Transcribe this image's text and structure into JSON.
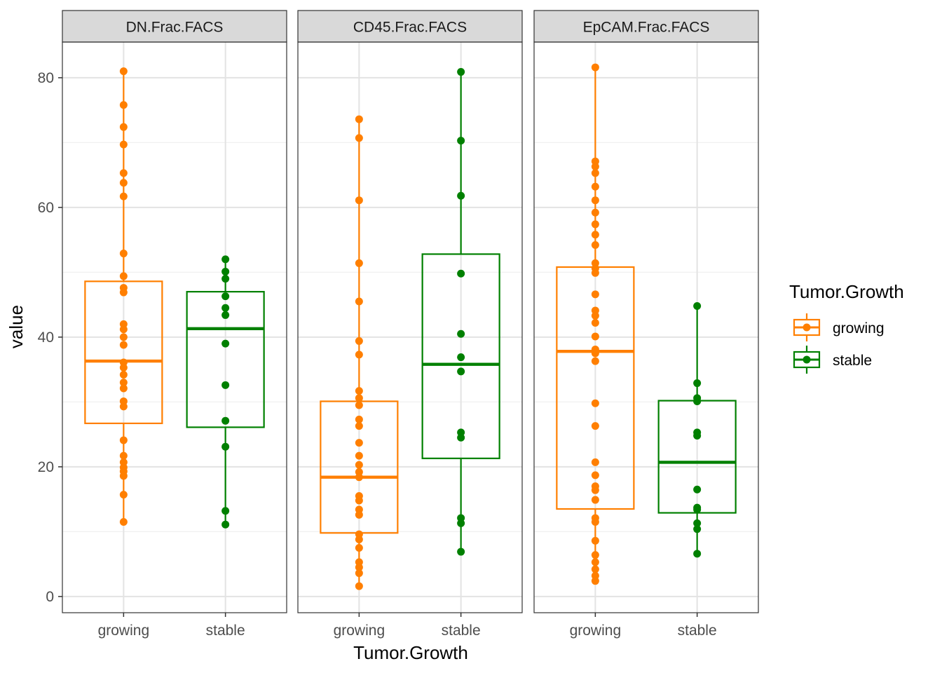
{
  "chart_data": {
    "type": "box",
    "xlabel": "Tumor.Growth",
    "ylabel": "value",
    "ylim": [
      -2.5,
      85.5
    ],
    "y_ticks": [
      0,
      20,
      40,
      60,
      80
    ],
    "categories": [
      "growing",
      "stable"
    ],
    "legend": {
      "title": "Tumor.Growth",
      "position": "right",
      "entries": [
        "growing",
        "stable"
      ]
    },
    "colors": {
      "growing": "#ff7f00",
      "stable": "#008000"
    },
    "grid": true,
    "facets": [
      {
        "name": "DN.Frac.FACS",
        "groups": [
          {
            "category": "growing",
            "box": {
              "min": 11.5,
              "q1": 26.7,
              "median": 36.3,
              "q3": 48.6,
              "max": 81.0
            },
            "points": [
              81.0,
              75.8,
              72.4,
              69.7,
              65.3,
              63.8,
              61.7,
              52.9,
              49.4,
              47.6,
              46.9,
              42.0,
              41.2,
              40.0,
              38.8,
              36.1,
              35.3,
              34.2,
              33.0,
              32.1,
              30.1,
              29.3,
              24.1,
              21.7,
              20.7,
              19.9,
              19.3,
              18.6,
              15.7,
              11.5
            ]
          },
          {
            "category": "stable",
            "box": {
              "min": 11.1,
              "q1": 26.1,
              "median": 41.3,
              "q3": 47.0,
              "max": 52.0
            },
            "points": [
              52.0,
              50.1,
              49.0,
              46.3,
              44.5,
              43.4,
              39.0,
              32.6,
              27.1,
              23.1,
              13.2,
              11.1
            ]
          }
        ]
      },
      {
        "name": "CD45.Frac.FACS",
        "groups": [
          {
            "category": "growing",
            "box": {
              "min": 1.6,
              "q1": 9.8,
              "median": 18.4,
              "q3": 30.1,
              "max": 73.6
            },
            "points": [
              73.6,
              70.7,
              61.1,
              51.4,
              45.5,
              39.4,
              37.3,
              31.7,
              30.6,
              29.5,
              27.3,
              26.3,
              23.7,
              21.7,
              20.3,
              19.2,
              18.4,
              15.5,
              14.8,
              13.4,
              12.6,
              9.6,
              8.8,
              7.5,
              5.3,
              4.5,
              3.6,
              1.6
            ]
          },
          {
            "category": "stable",
            "box": {
              "min": 6.9,
              "q1": 21.3,
              "median": 35.8,
              "q3": 52.8,
              "max": 80.9
            },
            "points": [
              80.9,
              70.3,
              61.8,
              49.8,
              40.5,
              36.9,
              34.7,
              25.3,
              24.5,
              12.1,
              11.3,
              6.9
            ]
          }
        ]
      },
      {
        "name": "EpCAM.Frac.FACS",
        "groups": [
          {
            "category": "growing",
            "box": {
              "min": 2.4,
              "q1": 13.5,
              "median": 37.8,
              "q3": 50.8,
              "max": 81.6
            },
            "points": [
              81.6,
              67.1,
              66.3,
              65.3,
              63.2,
              61.1,
              59.2,
              57.4,
              55.8,
              54.2,
              51.4,
              50.6,
              49.9,
              46.6,
              44.1,
              43.3,
              42.2,
              40.1,
              38.1,
              37.5,
              36.3,
              29.8,
              26.3,
              20.7,
              18.7,
              17.0,
              16.4,
              14.9,
              12.1,
              11.5,
              8.6,
              6.4,
              5.3,
              4.2,
              3.2,
              2.4
            ]
          },
          {
            "category": "stable",
            "box": {
              "min": 6.6,
              "q1": 12.9,
              "median": 20.7,
              "q3": 30.2,
              "max": 44.8
            },
            "points": [
              44.8,
              32.9,
              30.6,
              30.1,
              25.3,
              24.8,
              16.5,
              13.7,
              13.4,
              11.3,
              10.4,
              6.6
            ]
          }
        ]
      }
    ]
  }
}
